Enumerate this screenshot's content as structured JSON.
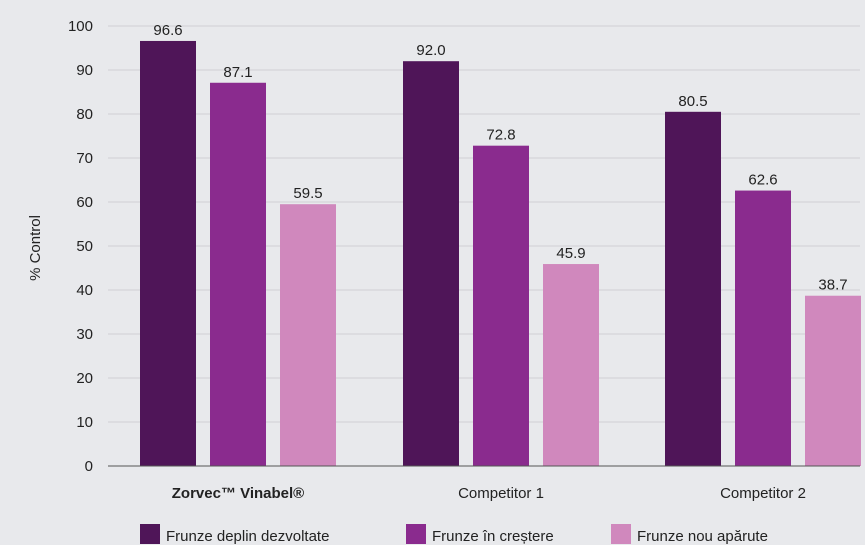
{
  "chart_data": {
    "type": "bar",
    "title": "",
    "xlabel": "",
    "ylabel": "% Control",
    "ylim": [
      0,
      100
    ],
    "yticks": [
      "0",
      "10",
      "20",
      "30",
      "40",
      "50",
      "60",
      "70",
      "80",
      "90",
      "100"
    ],
    "grid": true,
    "legend_position": "bottom",
    "categories": [
      "Zorvec™ Vinabel®",
      "Competitor 1",
      "Competitor 2"
    ],
    "series": [
      {
        "name": "Frunze deplin dezvoltate",
        "color": "#4f1558",
        "values": [
          96.6,
          92.0,
          80.5
        ],
        "labels": [
          "96.6",
          "92.0",
          "80.5"
        ]
      },
      {
        "name": "Frunze în creștere",
        "color": "#8a2b8e",
        "values": [
          87.1,
          72.8,
          62.6
        ],
        "labels": [
          "87.1",
          "72.8",
          "62.6"
        ]
      },
      {
        "name": "Frunze nou apărute",
        "color": "#d088bd",
        "values": [
          59.5,
          45.9,
          38.7
        ],
        "labels": [
          "59.5",
          "45.9",
          "38.7"
        ]
      }
    ]
  }
}
